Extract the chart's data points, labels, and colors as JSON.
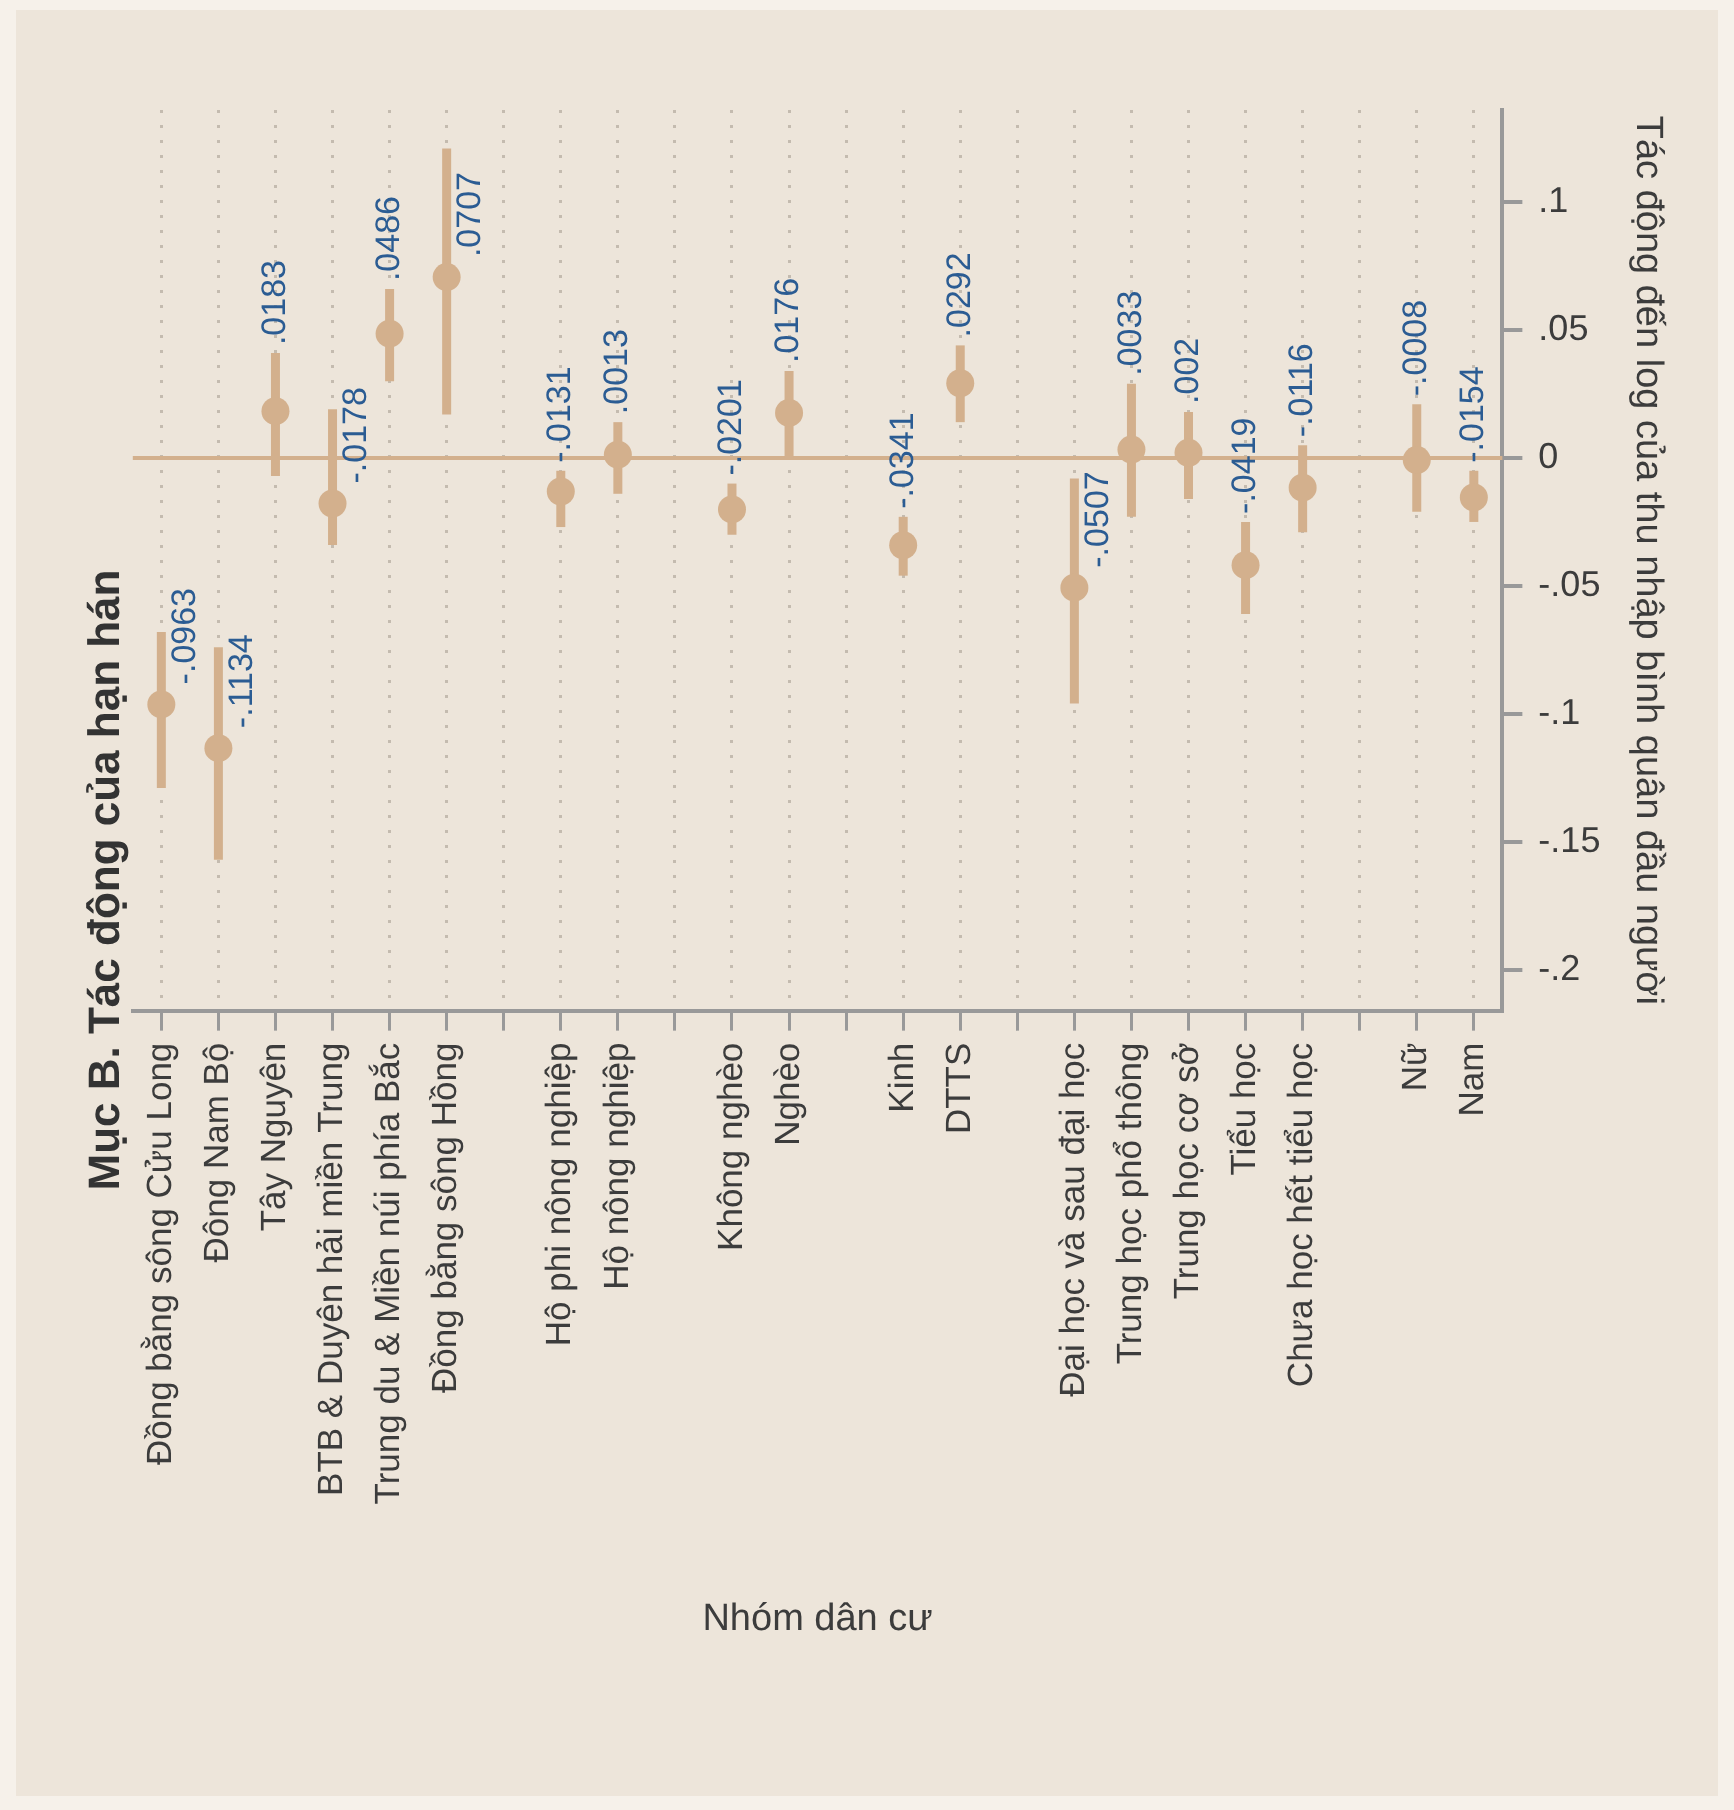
{
  "chart_data": {
    "type": "scatter",
    "title": "Mục B. Tác động của hạn hán",
    "ylabel": "Tác động đến log của thu nhập bình quân đầu người",
    "xlabel": "Nhóm dân cư",
    "categories": [
      "Đồng bằng sông Cửu Long",
      "Đông Nam Bộ",
      "Tây Nguyên",
      "BTB & Duyên hải miền Trung",
      "Trung du & Miền núi phía Bắc",
      "Đồng bằng sông Hồng",
      null,
      "Hộ phi nông nghiệp",
      "Hộ nông nghiệp",
      null,
      "Không nghèo",
      "Nghèo",
      null,
      "Kinh",
      "DTTS",
      null,
      "Đại học và sau đại học",
      "Trung học phổ thông",
      "Trung học cơ sở",
      "Tiểu học",
      "Chưa học hết tiểu học",
      null,
      "Nữ",
      "Nam"
    ],
    "values": [
      -0.0963,
      -0.1134,
      0.0183,
      -0.0178,
      0.0486,
      0.0707,
      null,
      -0.0131,
      0.0013,
      null,
      -0.0201,
      0.0176,
      null,
      -0.0341,
      0.0292,
      null,
      -0.0507,
      0.0033,
      0.002,
      -0.0419,
      -0.0116,
      null,
      -0.0008,
      -0.0154
    ],
    "value_labels": [
      "-.0963",
      "-.1134",
      ".0183",
      "-.0178",
      ".0486",
      ".0707",
      null,
      "-.0131",
      ".0013",
      null,
      "-.0201",
      ".0176",
      null,
      "-.0341",
      ".0292",
      null,
      "-.0507",
      ".0033",
      ".002",
      "-.0419",
      "-.0116",
      null,
      "-.0008",
      "-.0154"
    ],
    "errors": [
      [
        -0.129,
        -0.068
      ],
      [
        -0.157,
        -0.074
      ],
      [
        -0.007,
        0.041
      ],
      [
        -0.034,
        0.019
      ],
      [
        0.03,
        0.066
      ],
      [
        0.017,
        0.121
      ],
      null,
      [
        -0.027,
        -0.005
      ],
      [
        -0.014,
        0.014
      ],
      null,
      [
        -0.03,
        -0.01
      ],
      [
        0.0,
        0.034
      ],
      null,
      [
        -0.046,
        -0.023
      ],
      [
        0.014,
        0.044
      ],
      null,
      [
        -0.096,
        -0.008
      ],
      [
        -0.023,
        0.029
      ],
      [
        -0.016,
        0.018
      ],
      [
        -0.061,
        -0.025
      ],
      [
        -0.029,
        0.005
      ],
      null,
      [
        -0.021,
        0.021
      ],
      [
        -0.025,
        -0.005
      ]
    ],
    "color": "#d3b08d",
    "marker": "circle",
    "grid": "x",
    "ylim": [
      -0.216,
      0.136
    ],
    "yticks": [
      {
        "value": -0.2,
        "label": "-.2"
      },
      {
        "value": -0.15,
        "label": "-.15"
      },
      {
        "value": -0.1,
        "label": "-.1"
      },
      {
        "value": -0.05,
        "label": "-.05"
      },
      0,
      {
        "value": 0.05,
        "label": ".05"
      },
      {
        "value": 0.1,
        "label": ".1"
      }
    ],
    "ref_lines": [
      {
        "axis": "y",
        "value": 0,
        "color": "#d3b08d"
      }
    ]
  }
}
